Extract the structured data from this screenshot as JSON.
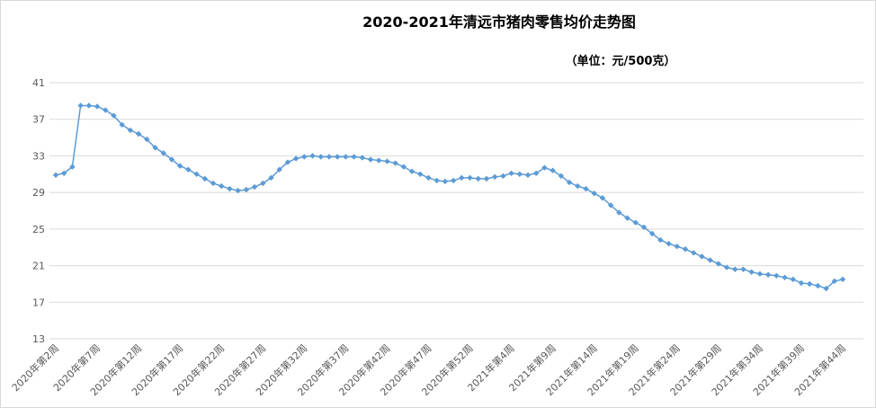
{
  "chart_data": {
    "type": "line",
    "title": "2020-2021年清远市猪肉零售均价走势图",
    "subtitle": "（单位：元/500克）",
    "categories": [
      "2020年第2周",
      null,
      null,
      null,
      null,
      "2020年第7周",
      null,
      null,
      null,
      null,
      "2020年第12周",
      null,
      null,
      null,
      null,
      "2020年第17周",
      null,
      null,
      null,
      null,
      "2020年第22周",
      null,
      null,
      null,
      null,
      "2020年第27周",
      null,
      null,
      null,
      null,
      "2020年第32周",
      null,
      null,
      null,
      null,
      "2020年第37周",
      null,
      null,
      null,
      null,
      "2020年第42周",
      null,
      null,
      null,
      null,
      "2020年第47周",
      null,
      null,
      null,
      null,
      "2020年第52周",
      null,
      null,
      null,
      null,
      "2021年第4周",
      null,
      null,
      null,
      null,
      "2021年第9周",
      null,
      null,
      null,
      null,
      "2021年第14周",
      null,
      null,
      null,
      null,
      "2021年第19周",
      null,
      null,
      null,
      null,
      "2021年第24周",
      null,
      null,
      null,
      null,
      "2021年第29周",
      null,
      null,
      null,
      null,
      "2021年第34周",
      null,
      null,
      null,
      null,
      "2021年第39周",
      null,
      null,
      null,
      null,
      "2021年第44周"
    ],
    "series": [
      {
        "name": "猪肉零售均价",
        "color": "#5b9bd5",
        "values": [
          30.9,
          31.1,
          31.8,
          38.5,
          38.5,
          38.4,
          38.0,
          37.4,
          36.4,
          35.8,
          35.4,
          34.8,
          33.9,
          33.3,
          32.6,
          31.9,
          31.5,
          31.0,
          30.5,
          30.0,
          29.7,
          29.4,
          29.2,
          29.3,
          29.6,
          30.0,
          30.6,
          31.5,
          32.3,
          32.7,
          32.9,
          33.0,
          32.9,
          32.9,
          32.9,
          32.9,
          32.9,
          32.8,
          32.6,
          32.5,
          32.4,
          32.2,
          31.8,
          31.3,
          31.0,
          30.6,
          30.3,
          30.2,
          30.3,
          30.6,
          30.6,
          30.5,
          30.5,
          30.7,
          30.8,
          31.1,
          31.0,
          30.9,
          31.1,
          31.7,
          31.4,
          30.8,
          30.1,
          29.7,
          29.4,
          28.9,
          28.4,
          27.6,
          26.8,
          26.2,
          25.7,
          25.2,
          24.5,
          23.8,
          23.4,
          23.1,
          22.8,
          22.4,
          22.0,
          21.6,
          21.2,
          20.8,
          20.6,
          20.6,
          20.3,
          20.1,
          20.0,
          19.9,
          19.7,
          19.5,
          19.1,
          19.0,
          18.8,
          18.5,
          19.3,
          19.5
        ]
      }
    ],
    "ylim": [
      13,
      41
    ],
    "yticks": [
      13,
      17,
      21,
      25,
      29,
      33,
      37,
      41
    ],
    "grid": true
  }
}
